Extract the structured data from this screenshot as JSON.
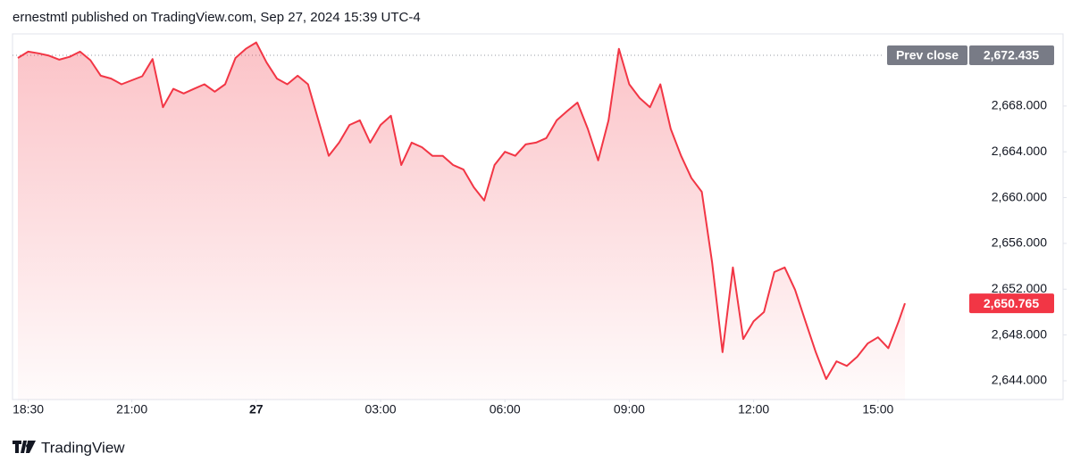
{
  "header": {
    "text": "ernestmtl published on TradingView.com, Sep 27, 2024 15:39 UTC-4"
  },
  "chart_data": {
    "type": "area",
    "color": "#f23645",
    "x": [
      "18:15",
      "18:30",
      "18:45",
      "19:00",
      "19:15",
      "19:30",
      "19:45",
      "20:00",
      "20:15",
      "20:30",
      "20:45",
      "21:00",
      "21:15",
      "21:30",
      "21:45",
      "22:00",
      "22:15",
      "22:30",
      "22:45",
      "23:00",
      "23:15",
      "23:30",
      "23:45",
      "00:00",
      "00:15",
      "00:30",
      "00:45",
      "01:00",
      "01:15",
      "01:30",
      "01:45",
      "02:00",
      "02:15",
      "02:30",
      "02:45",
      "03:00",
      "03:15",
      "03:30",
      "03:45",
      "04:00",
      "04:15",
      "04:30",
      "04:45",
      "05:00",
      "05:15",
      "05:30",
      "05:45",
      "06:00",
      "06:15",
      "06:30",
      "06:45",
      "07:00",
      "07:15",
      "07:30",
      "07:45",
      "08:00",
      "08:15",
      "08:30",
      "08:45",
      "09:00",
      "09:15",
      "09:30",
      "09:45",
      "10:00",
      "10:15",
      "10:30",
      "10:45",
      "11:00",
      "11:15",
      "11:30",
      "11:45",
      "12:00",
      "12:15",
      "12:30",
      "12:45",
      "13:00",
      "13:15",
      "13:30",
      "13:45",
      "14:00",
      "14:15",
      "14:30",
      "14:45",
      "15:00",
      "15:15",
      "15:30",
      "15:39"
    ],
    "values": [
      2672.2,
      2672.75,
      2672.6,
      2672.4,
      2672.05,
      2672.3,
      2672.75,
      2672.0,
      2670.65,
      2670.4,
      2669.9,
      2670.25,
      2670.6,
      2672.1,
      2667.9,
      2669.5,
      2669.1,
      2669.5,
      2669.9,
      2669.25,
      2669.9,
      2672.2,
      2673.0,
      2673.55,
      2671.8,
      2670.4,
      2669.9,
      2670.65,
      2669.9,
      2666.75,
      2663.65,
      2664.8,
      2666.35,
      2666.75,
      2664.8,
      2666.35,
      2667.15,
      2662.85,
      2664.8,
      2664.4,
      2663.65,
      2663.65,
      2662.85,
      2662.45,
      2660.9,
      2659.75,
      2662.85,
      2664.0,
      2663.65,
      2664.65,
      2664.8,
      2665.2,
      2666.75,
      2667.55,
      2668.3,
      2666.0,
      2663.25,
      2666.75,
      2673.0,
      2669.9,
      2668.7,
      2667.9,
      2669.9,
      2666.0,
      2663.65,
      2661.7,
      2660.5,
      2654.3,
      2646.5,
      2653.9,
      2647.65,
      2649.2,
      2650.0,
      2653.5,
      2653.9,
      2651.95,
      2649.2,
      2646.5,
      2644.15,
      2645.7,
      2645.3,
      2646.1,
      2647.25,
      2647.8,
      2646.85,
      2649.2,
      2650.765
    ],
    "ylim": [
      2642.36,
      2674.3
    ],
    "yticks": [
      {
        "value": 2644,
        "label": "2,644.000"
      },
      {
        "value": 2648,
        "label": "2,648.000"
      },
      {
        "value": 2652,
        "label": "2,652.000"
      },
      {
        "value": 2656,
        "label": "2,656.000"
      },
      {
        "value": 2660,
        "label": "2,660.000"
      },
      {
        "value": 2664,
        "label": "2,664.000"
      },
      {
        "value": 2668,
        "label": "2,668.000"
      }
    ],
    "xticks": [
      {
        "value": "18:30",
        "label": "18:30"
      },
      {
        "value": "21:00",
        "label": "21:00"
      },
      {
        "value": "00:00",
        "label": "27"
      },
      {
        "value": "03:00",
        "label": "03:00"
      },
      {
        "value": "06:00",
        "label": "06:00"
      },
      {
        "value": "09:00",
        "label": "09:00"
      },
      {
        "value": "12:00",
        "label": "12:00"
      },
      {
        "value": "15:00",
        "label": "15:00"
      }
    ],
    "prev_close": {
      "name": "Prev close",
      "value": 2672.435,
      "label": "2,672.435"
    },
    "last_price": {
      "value": 2650.765,
      "label": "2,650.765"
    }
  },
  "footer": {
    "brand": "TradingView"
  }
}
